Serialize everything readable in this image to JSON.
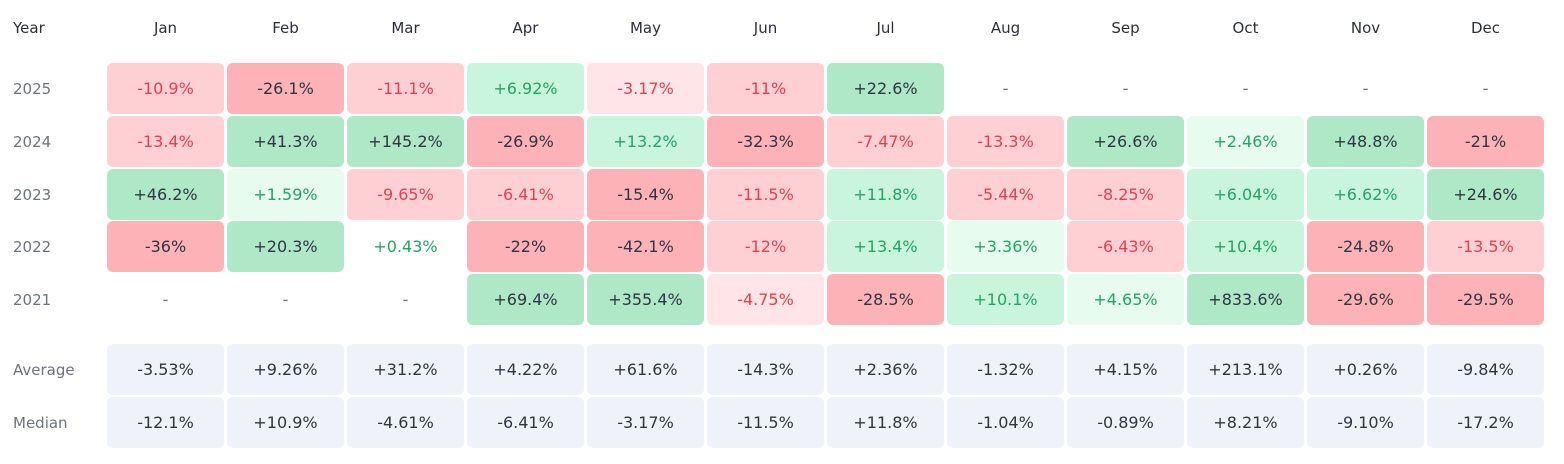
{
  "chart_data": {
    "type": "heatmap",
    "title": "",
    "corner_label": "Year",
    "columns": [
      "Jan",
      "Feb",
      "Mar",
      "Apr",
      "May",
      "Jun",
      "Jul",
      "Aug",
      "Sep",
      "Oct",
      "Nov",
      "Dec"
    ],
    "rows": [
      {
        "label": "2025",
        "values": [
          "-10.9%",
          "-26.1%",
          "-11.1%",
          "+6.92%",
          "-3.17%",
          "-11%",
          "+22.6%",
          "-",
          "-",
          "-",
          "-",
          "-"
        ]
      },
      {
        "label": "2024",
        "values": [
          "-13.4%",
          "+41.3%",
          "+145.2%",
          "-26.9%",
          "+13.2%",
          "-32.3%",
          "-7.47%",
          "-13.3%",
          "+26.6%",
          "+2.46%",
          "+48.8%",
          "-21%"
        ]
      },
      {
        "label": "2023",
        "values": [
          "+46.2%",
          "+1.59%",
          "-9.65%",
          "-6.41%",
          "-15.4%",
          "-11.5%",
          "+11.8%",
          "-5.44%",
          "-8.25%",
          "+6.04%",
          "+6.62%",
          "+24.6%"
        ]
      },
      {
        "label": "2022",
        "values": [
          "-36%",
          "+20.3%",
          "+0.43%",
          "-22%",
          "-42.1%",
          "-12%",
          "+13.4%",
          "+3.36%",
          "-6.43%",
          "+10.4%",
          "-24.8%",
          "-13.5%"
        ]
      },
      {
        "label": "2021",
        "values": [
          "-",
          "-",
          "-",
          "+69.4%",
          "+355.4%",
          "-4.75%",
          "-28.5%",
          "+10.1%",
          "+4.65%",
          "+833.6%",
          "-29.6%",
          "-29.5%"
        ]
      }
    ],
    "summary_rows": [
      {
        "label": "Average",
        "values": [
          "-3.53%",
          "+9.26%",
          "+31.2%",
          "+4.22%",
          "+61.6%",
          "-14.3%",
          "+2.36%",
          "-1.32%",
          "+4.15%",
          "+213.1%",
          "+0.26%",
          "-9.84%"
        ]
      },
      {
        "label": "Median",
        "values": [
          "-12.1%",
          "+10.9%",
          "-4.61%",
          "-6.41%",
          "-3.17%",
          "-11.5%",
          "+11.8%",
          "-1.04%",
          "-0.89%",
          "+8.21%",
          "-9.10%",
          "-17.2%"
        ]
      }
    ],
    "colors": {
      "pos_strong": "#aee8c6",
      "pos_medium": "#c8f5dc",
      "pos_light": "#e7fbee",
      "neg_strong": "#fdb2b8",
      "neg_medium": "#fed0d3",
      "neg_light": "#ffe5e7",
      "summary_bg": "#eff3f9"
    }
  }
}
